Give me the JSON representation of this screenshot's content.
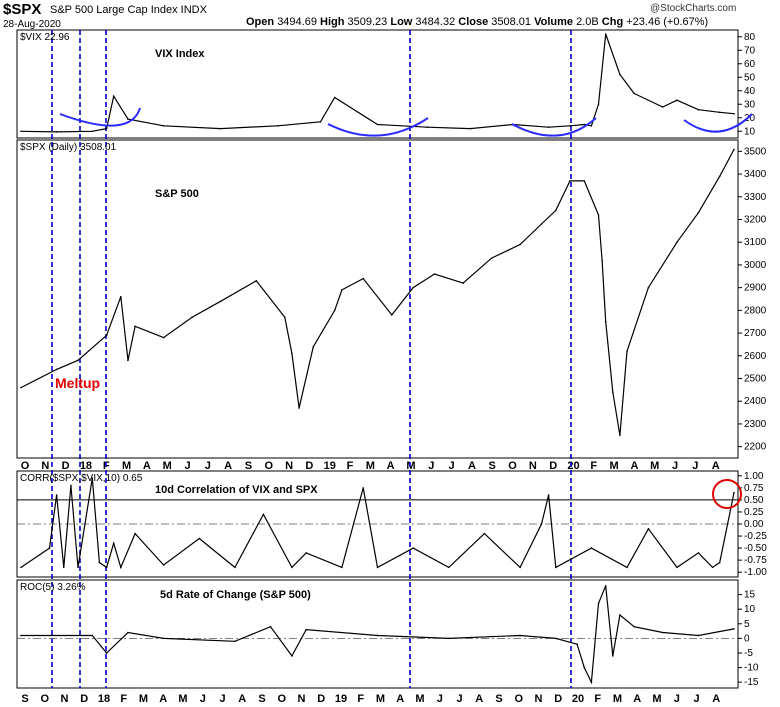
{
  "header": {
    "symbol": "$SPX",
    "name": "S&P 500 Large Cap Index INDX",
    "date": "28-Aug-2020",
    "open_label": "Open",
    "open": "3494.69",
    "high_label": "High",
    "high": "3509.23",
    "low_label": "Low",
    "low": "3484.32",
    "close_label": "Close",
    "close": "3508.01",
    "volume_label": "Volume",
    "volume": "2.0B",
    "chg_label": "Chg",
    "chg": "+23.46 (+0.67%)",
    "logo": "@StockCharts.com"
  },
  "annotation": {
    "meltup": "Meltup"
  },
  "colors": {
    "vline": "#0000cc",
    "arc": "#2a2aff",
    "circle": "#e00000",
    "meltup": "#e00000",
    "line": "#000000"
  },
  "chart_data": [
    {
      "type": "line",
      "panel": "vix",
      "legend": "$VIX 22.96",
      "title": "VIX Index",
      "ylim": [
        5,
        85
      ],
      "yticks": [
        10,
        20,
        30,
        40,
        50,
        60,
        70,
        80
      ],
      "x": [
        0,
        0.05,
        0.1,
        0.12,
        0.13,
        0.15,
        0.2,
        0.28,
        0.36,
        0.42,
        0.44,
        0.5,
        0.57,
        0.63,
        0.69,
        0.74,
        0.77,
        0.79,
        0.8,
        0.81,
        0.82,
        0.84,
        0.86,
        0.9,
        0.92,
        0.95,
        0.98,
        1.0
      ],
      "values": [
        10,
        9.5,
        10,
        12,
        36,
        19,
        14,
        12,
        14,
        17,
        35,
        15,
        13,
        12,
        15,
        13,
        14,
        15,
        14,
        30,
        82,
        52,
        38,
        28,
        33,
        26,
        24,
        23
      ]
    },
    {
      "type": "line",
      "panel": "spx",
      "legend": "$SPX (Daily) 3508.01",
      "title": "S&P 500",
      "ylim": [
        2150,
        3550
      ],
      "yticks": [
        2200,
        2300,
        2400,
        2500,
        2600,
        2700,
        2800,
        2900,
        3000,
        3100,
        3200,
        3300,
        3400,
        3500
      ],
      "x": [
        0,
        0.05,
        0.08,
        0.12,
        0.14,
        0.15,
        0.16,
        0.2,
        0.24,
        0.28,
        0.33,
        0.37,
        0.38,
        0.39,
        0.41,
        0.44,
        0.45,
        0.48,
        0.52,
        0.55,
        0.58,
        0.62,
        0.66,
        0.7,
        0.73,
        0.75,
        0.77,
        0.79,
        0.81,
        0.815,
        0.82,
        0.83,
        0.84,
        0.85,
        0.88,
        0.92,
        0.95,
        0.98,
        1.0
      ],
      "values": [
        2460,
        2540,
        2580,
        2690,
        2860,
        2580,
        2730,
        2680,
        2770,
        2840,
        2930,
        2770,
        2610,
        2370,
        2640,
        2800,
        2890,
        2940,
        2780,
        2900,
        2960,
        2920,
        3030,
        3090,
        3180,
        3240,
        3370,
        3370,
        3220,
        3020,
        2750,
        2440,
        2250,
        2620,
        2900,
        3100,
        3230,
        3390,
        3508
      ]
    },
    {
      "type": "line",
      "panel": "corr",
      "legend": "CORR($SPX,$VIX,10) 0.65",
      "title": "10d Correlation of VIX and SPX",
      "ylim": [
        -1.1,
        1.1
      ],
      "yticks": [
        1.0,
        0.75,
        0.5,
        0.25,
        0.0,
        -0.25,
        -0.5,
        -0.75,
        -1.0
      ],
      "reference": 0.5,
      "x": [
        0,
        0.04,
        0.05,
        0.06,
        0.07,
        0.08,
        0.1,
        0.11,
        0.12,
        0.13,
        0.14,
        0.16,
        0.2,
        0.25,
        0.3,
        0.34,
        0.38,
        0.4,
        0.45,
        0.48,
        0.5,
        0.55,
        0.6,
        0.65,
        0.7,
        0.73,
        0.74,
        0.75,
        0.8,
        0.85,
        0.88,
        0.92,
        0.95,
        0.97,
        0.98,
        1.0
      ],
      "values": [
        -0.9,
        -0.5,
        0.6,
        -0.9,
        0.8,
        -0.9,
        0.95,
        -0.8,
        -0.9,
        -0.4,
        -0.9,
        -0.2,
        -0.85,
        -0.3,
        -0.9,
        0.2,
        -0.9,
        -0.6,
        -0.9,
        0.75,
        -0.9,
        -0.5,
        -0.9,
        -0.2,
        -0.9,
        0.0,
        0.6,
        -0.9,
        -0.5,
        -0.9,
        -0.1,
        -0.9,
        -0.6,
        -0.9,
        -0.8,
        0.65
      ]
    },
    {
      "type": "line",
      "panel": "roc",
      "legend": "ROC(5) 3.26%",
      "title": "5d Rate of Change (S&P 500)",
      "ylim": [
        -17,
        20
      ],
      "yticks": [
        15,
        10,
        5,
        0,
        -5,
        -10,
        -15
      ],
      "x": [
        0,
        0.1,
        0.12,
        0.15,
        0.2,
        0.3,
        0.35,
        0.38,
        0.4,
        0.5,
        0.6,
        0.7,
        0.75,
        0.78,
        0.79,
        0.8,
        0.81,
        0.82,
        0.83,
        0.84,
        0.86,
        0.9,
        0.95,
        1.0
      ],
      "values": [
        1,
        1,
        -5,
        2,
        0,
        -1,
        4,
        -6,
        3,
        1,
        0,
        1,
        0,
        -2,
        -10,
        -15,
        12,
        18,
        -6,
        8,
        4,
        2,
        1,
        3.26
      ]
    }
  ],
  "xaxis_top": [
    "O",
    "N",
    "D",
    "18",
    "F",
    "M",
    "A",
    "M",
    "J",
    "J",
    "A",
    "S",
    "O",
    "N",
    "D",
    "19",
    "F",
    "M",
    "A",
    "M",
    "J",
    "J",
    "A",
    "S",
    "O",
    "N",
    "D",
    "20",
    "F",
    "M",
    "A",
    "M",
    "J",
    "J",
    "A"
  ],
  "xaxis_bottom": [
    "S",
    "O",
    "N",
    "D",
    "18",
    "F",
    "M",
    "A",
    "M",
    "J",
    "J",
    "A",
    "S",
    "O",
    "N",
    "D",
    "19",
    "F",
    "M",
    "A",
    "M",
    "J",
    "J",
    "A",
    "S",
    "O",
    "N",
    "D",
    "20",
    "F",
    "M",
    "A",
    "M",
    "J",
    "J",
    "A"
  ]
}
